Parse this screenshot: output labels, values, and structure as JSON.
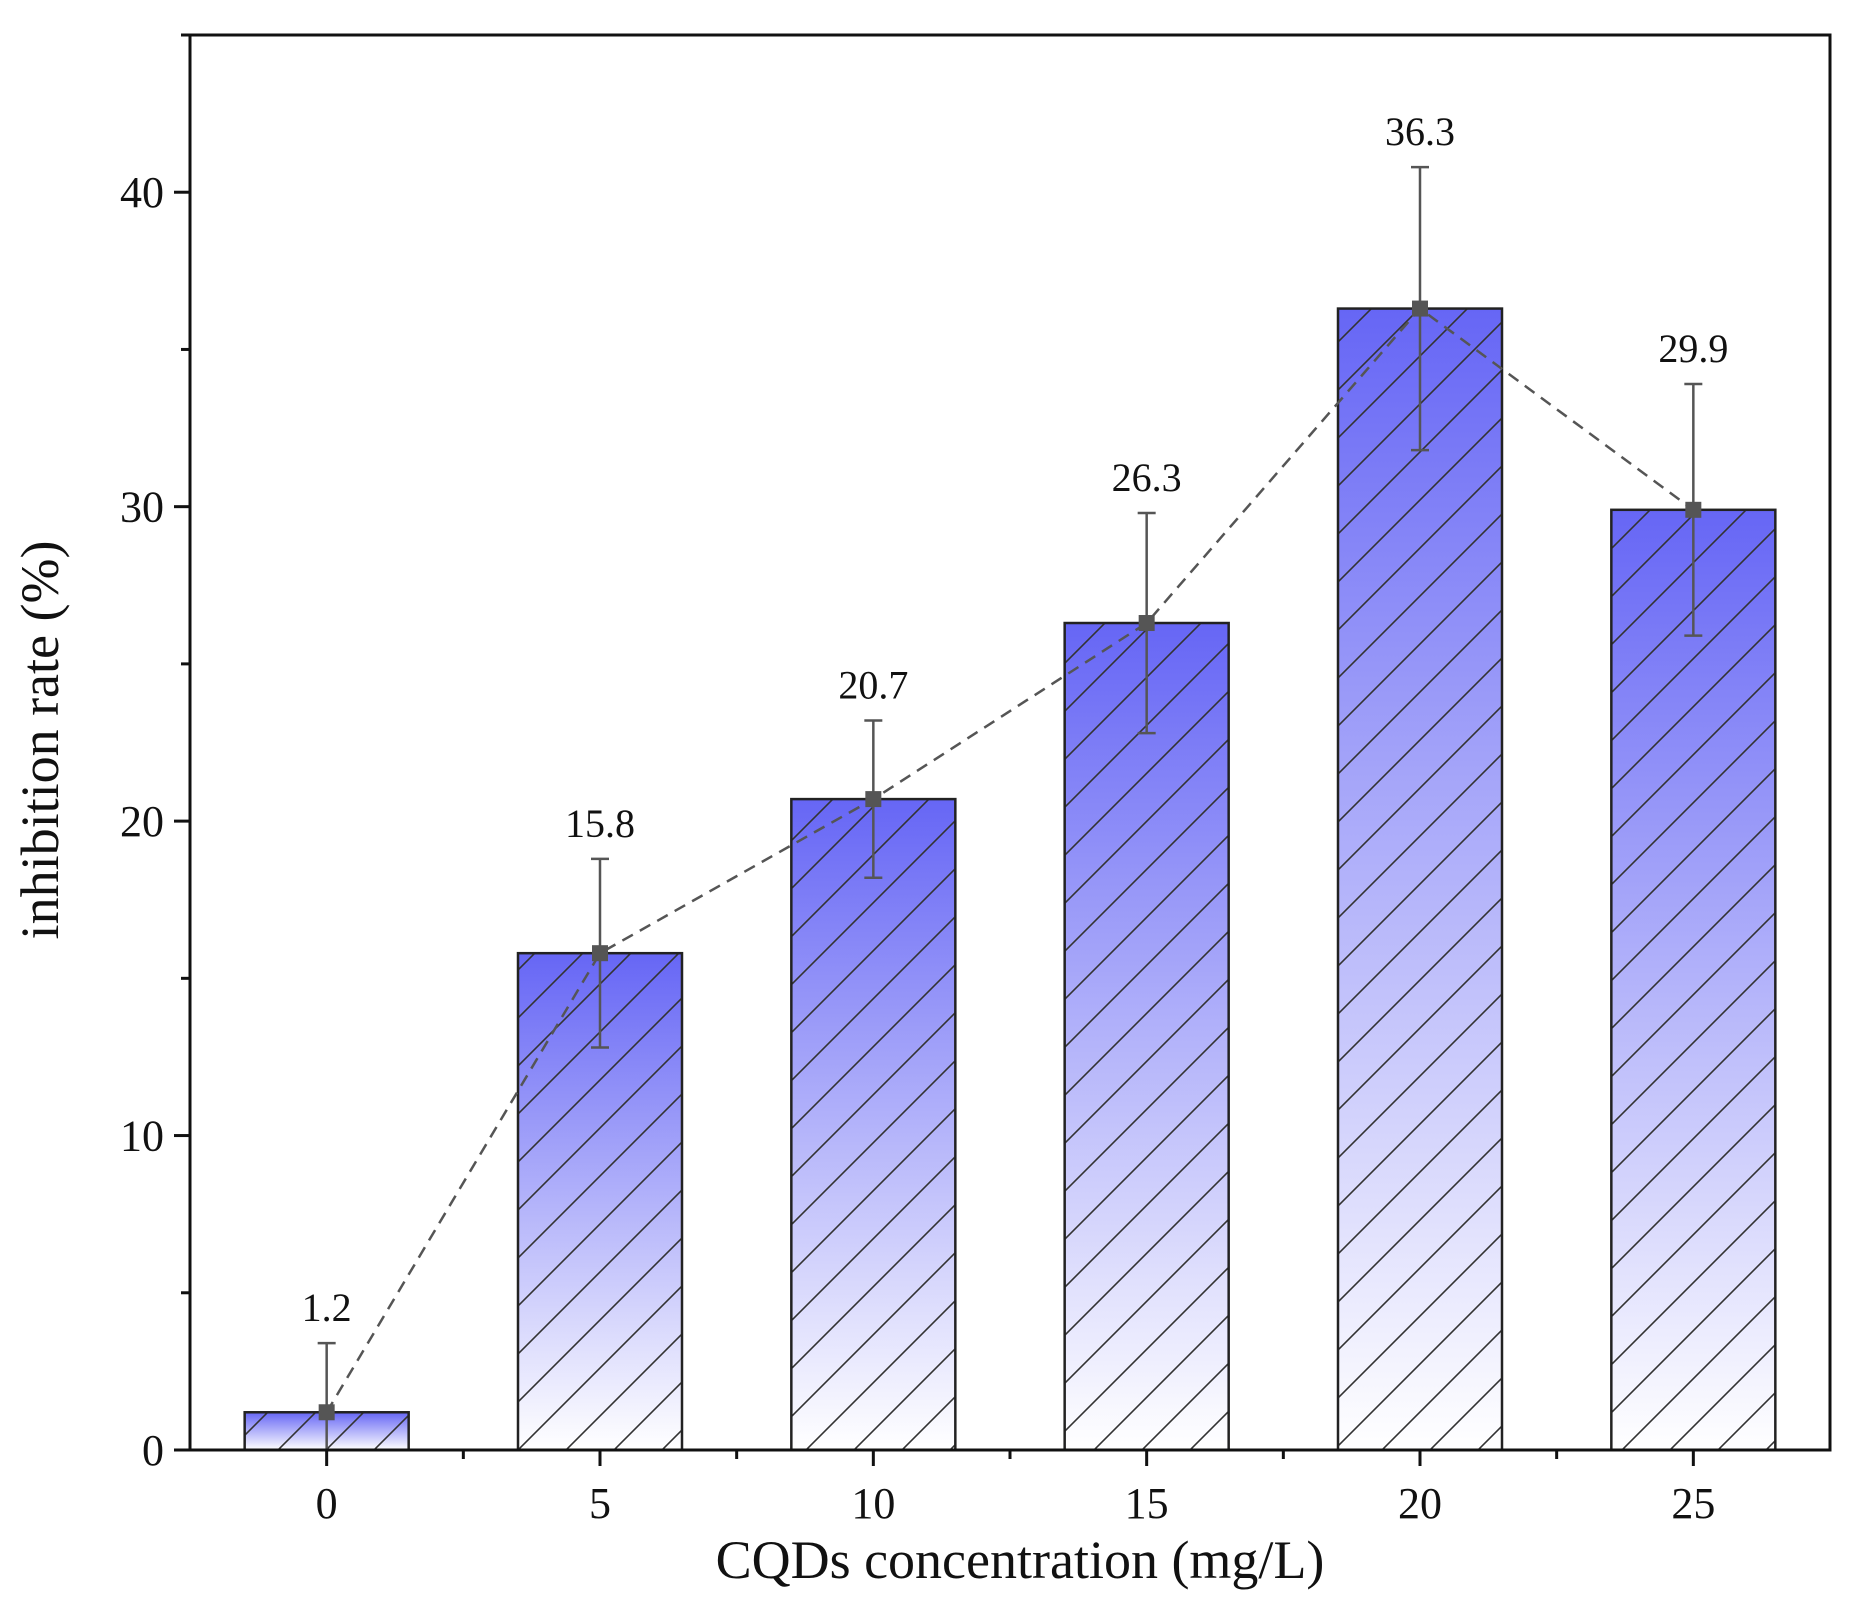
{
  "chart_data": {
    "type": "bar",
    "xlabel": "CQDs concentration (mg/L)",
    "ylabel": "inhibition rate (%)",
    "categories": [
      "0",
      "5",
      "10",
      "15",
      "20",
      "25"
    ],
    "values": [
      1.2,
      15.8,
      20.7,
      26.3,
      36.3,
      29.9
    ],
    "errors": [
      2.2,
      3.0,
      2.5,
      3.5,
      4.5,
      4.0
    ],
    "data_labels": [
      "1.2",
      "15.8",
      "20.7",
      "26.3",
      "36.3",
      "29.9"
    ],
    "ylim": [
      0,
      45
    ],
    "yticks": [
      0,
      10,
      20,
      30,
      40
    ],
    "ytick_labels": [
      "0",
      "10",
      "20",
      "30",
      "40"
    ],
    "overlay_line": "dashed connecting line through bar tops with square markers",
    "bar_fill": "vertical gradient blue to white with diagonal hatch",
    "colors": {
      "bar_top": "#6666f5",
      "bar_bottom": "#ffffff",
      "axis": "#111111",
      "line": "#555555"
    }
  }
}
